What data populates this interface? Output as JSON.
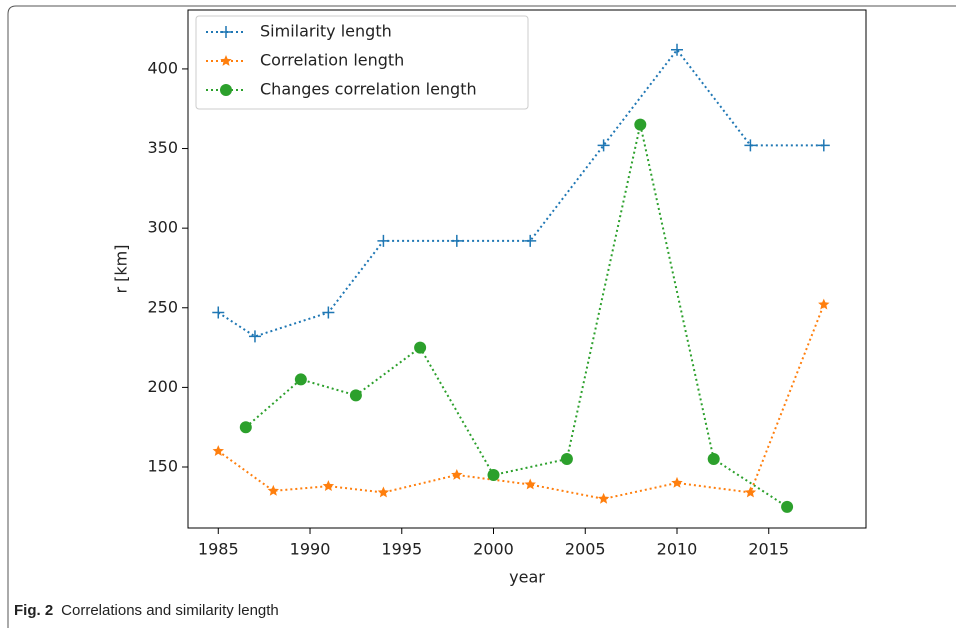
{
  "chart_data": {
    "type": "line",
    "xlabel": "year",
    "ylabel": "r [km]",
    "xlim": [
      1983.35,
      2020.3
    ],
    "ylim": [
      111.7,
      437
    ],
    "xticks": [
      1985,
      1990,
      1995,
      2000,
      2005,
      2010,
      2015
    ],
    "yticks": [
      150,
      200,
      250,
      300,
      350,
      400
    ],
    "grid": false,
    "legend": "upper-left",
    "series": [
      {
        "name": "Similarity length",
        "color": "#1f77b4",
        "marker": "plus",
        "x": [
          1985,
          1987,
          1991,
          1994,
          1998,
          2002,
          2006,
          2010,
          2014,
          2018
        ],
        "values": [
          247,
          232,
          247,
          292,
          292,
          292,
          352,
          412,
          352,
          352
        ]
      },
      {
        "name": "Correlation length",
        "color": "#ff7f0e",
        "marker": "star",
        "x": [
          1985,
          1988,
          1991,
          1994,
          1998,
          2002,
          2006,
          2010,
          2014,
          2018
        ],
        "values": [
          160,
          135,
          138,
          134,
          145,
          139,
          130,
          140,
          134,
          252
        ]
      },
      {
        "name": "Changes correlation length",
        "color": "#2ca02c",
        "marker": "circle",
        "x": [
          1986.5,
          1989.5,
          1992.5,
          1996,
          2000,
          2004,
          2008,
          2012,
          2016
        ],
        "values": [
          175,
          205,
          195,
          225,
          145,
          155,
          365,
          155,
          125
        ]
      }
    ]
  },
  "caption": {
    "label": "Fig. 2",
    "text": "Correlations and similarity length"
  }
}
